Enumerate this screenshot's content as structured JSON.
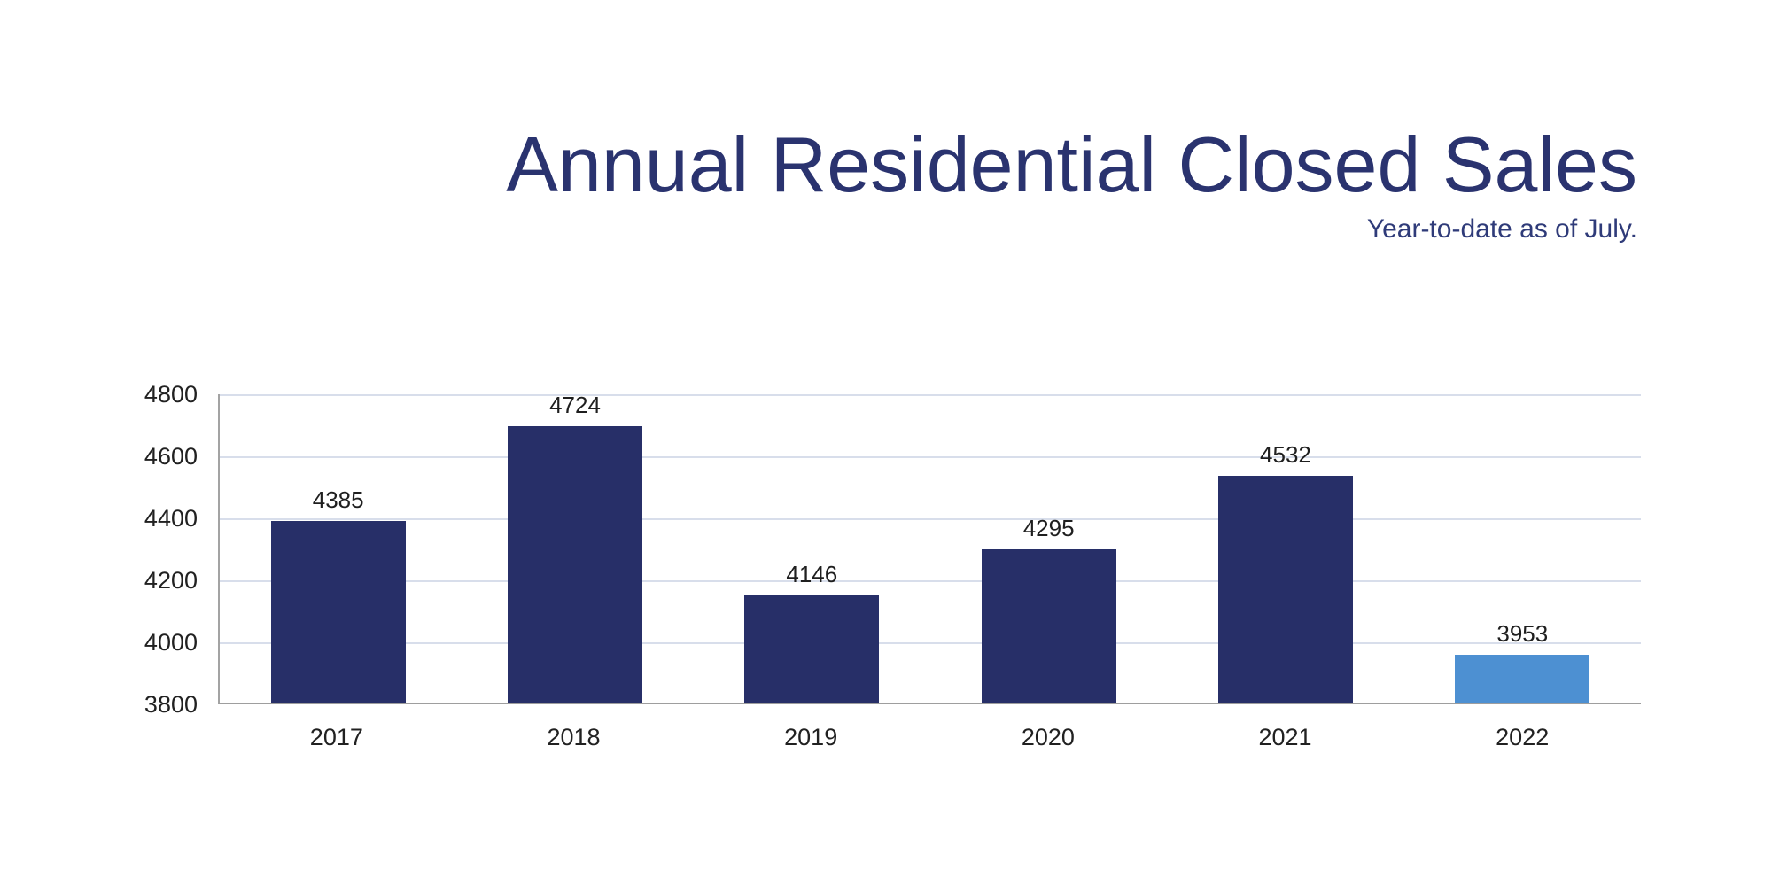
{
  "header": {
    "title": "Annual Residential Closed Sales",
    "subtitle": "Year-to-date as of July."
  },
  "colors": {
    "title_text": "#2a336f",
    "subtitle_text": "#2f3b79",
    "bar_primary": "#272f68",
    "bar_highlight": "#4d90d2",
    "gridline": "#d8deeb",
    "axis_line": "#a3a3a3",
    "label_text": "#1f1f1f",
    "background": "#ffffff"
  },
  "chart_data": {
    "type": "bar",
    "title": "Annual Residential Closed Sales",
    "subtitle": "Year-to-date as of July.",
    "categories": [
      "2017",
      "2018",
      "2019",
      "2020",
      "2021",
      "2022"
    ],
    "values": [
      4385,
      4724,
      4146,
      4295,
      4532,
      3953
    ],
    "bar_colors": [
      "#272f68",
      "#272f68",
      "#272f68",
      "#272f68",
      "#272f68",
      "#4d90d2"
    ],
    "highlighted_category": "2022",
    "y_ticks": [
      4800,
      4600,
      4400,
      4200,
      4000,
      3800
    ],
    "ylim": [
      3800,
      4800
    ],
    "grid": true,
    "data_labels": true,
    "legend": false,
    "xlabel": "",
    "ylabel": ""
  }
}
